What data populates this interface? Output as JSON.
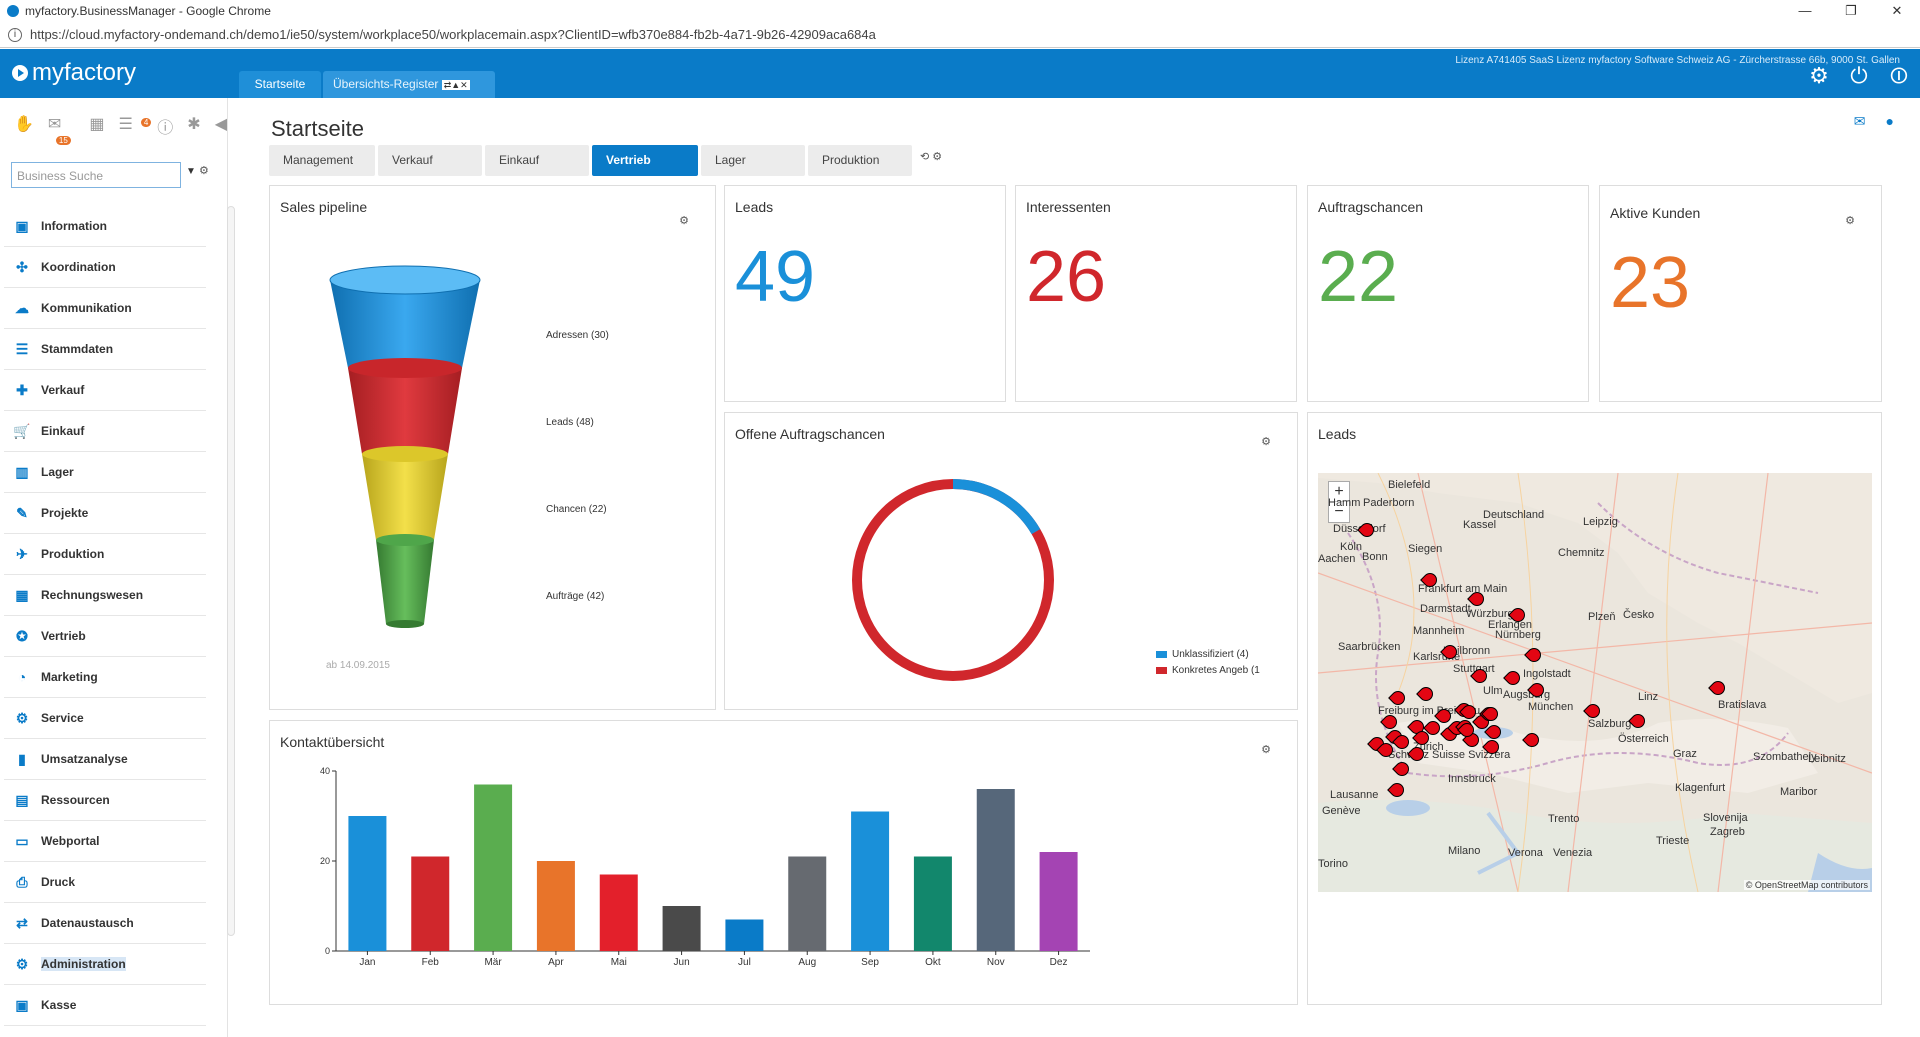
{
  "browser": {
    "title": "myfactory.BusinessManager - Google Chrome",
    "url": "https://cloud.myfactory-ondemand.ch/demo1/ie50/system/workplace50/workplacemain.aspx?ClientID=wfb370e884-fb2b-4a71-9b26-42909aca684a"
  },
  "header": {
    "logo": "myfactory",
    "license": "Lizenz A741405 SaaS Lizenz myfactory Software Schweiz AG - Zürcherstrasse 66b, 9000 St. Gallen",
    "tabs": [
      "Startseite",
      "Übersichts-Register"
    ]
  },
  "sidebar": {
    "badges": [
      "15",
      "4"
    ],
    "search_placeholder": "Business Suche",
    "items": [
      "Information",
      "Koordination",
      "Kommunikation",
      "Stammdaten",
      "Verkauf",
      "Einkauf",
      "Lager",
      "Projekte",
      "Produktion",
      "Rechnungswesen",
      "Vertrieb",
      "Marketing",
      "Service",
      "Umsatzanalyse",
      "Ressourcen",
      "Webportal",
      "Druck",
      "Datenaustausch",
      "Administration",
      "Kasse"
    ]
  },
  "main": {
    "title": "Startseite",
    "tabs": [
      "Management",
      "Verkauf",
      "Einkauf",
      "Vertrieb",
      "Lager",
      "Produktion"
    ],
    "active_tab": "Vertrieb"
  },
  "kpis": [
    {
      "label": "Leads",
      "value": "49",
      "color": "#1a90d9"
    },
    {
      "label": "Interessenten",
      "value": "26",
      "color": "#d0272c"
    },
    {
      "label": "Auftragschancen",
      "value": "22",
      "color": "#5aad4f"
    },
    {
      "label": "Aktive Kunden",
      "value": "23",
      "color": "#e8742a"
    }
  ],
  "pipeline": {
    "title": "Sales pipeline",
    "date": "ab 14.09.2015",
    "stages": [
      {
        "label": "Adressen (30)",
        "color": "#1a90d9"
      },
      {
        "label": "Leads (48)",
        "color": "#d0272c"
      },
      {
        "label": "Chancen (22)",
        "color": "#e8d12c"
      },
      {
        "label": "Aufträge (42)",
        "color": "#4fa64a"
      }
    ]
  },
  "offene": {
    "title": "Offene Auftragschancen",
    "legend": [
      "Unklassifiziert (4)",
      "Konkretes Angeb (1"
    ]
  },
  "leads_map": {
    "title": "Leads",
    "zoom_in": "+",
    "zoom_out": "−",
    "attribution": "© OpenStreetMap contributors",
    "labels": [
      "Bielefeld",
      "Paderborn",
      "Hamm",
      "Deutschland",
      "Kassel",
      "Leipzig",
      "Düsseldorf",
      "Köln",
      "Bonn",
      "Siegen",
      "Aachen",
      "Chemnitz",
      "Frankfurt am Main",
      "Darmstadt",
      "Würzburg",
      "Mannheim",
      "Erlangen",
      "Nürnberg",
      "Plzeň",
      "Česko",
      "Saarbrücken",
      "Heilbronn",
      "Karlsruhe",
      "Stuttgart",
      "Ingolstadt",
      "Ulm",
      "Augsburg",
      "München",
      "Freiburg im Breisgau",
      "Salzburg",
      "Linz",
      "Österreich",
      "Bratislava",
      "Zürich",
      "Schweiz Suisse Svizzera",
      "Graz",
      "Lausanne",
      "Genève",
      "Trento",
      "Slovenija",
      "Zagreb",
      "Milano",
      "Verona",
      "Venezia",
      "Torino",
      "Trieste",
      "Szombathely",
      "Maribor",
      "Klagenfurt",
      "Innsbruck",
      "Leibnitz"
    ]
  },
  "kontakt": {
    "title": "Kontaktübersicht"
  },
  "chart_data": {
    "type": "bar",
    "categories": [
      "Jan",
      "Feb",
      "Mär",
      "Apr",
      "Mai",
      "Jun",
      "Jul",
      "Aug",
      "Sep",
      "Okt",
      "Nov",
      "Dez"
    ],
    "values": [
      30,
      21,
      37,
      20,
      17,
      10,
      7,
      21,
      31,
      21,
      36,
      22
    ],
    "colors": [
      "#1a90d9",
      "#d0272c",
      "#5aad4f",
      "#e8742a",
      "#e3202b",
      "#4a4a4a",
      "#0a7bc8",
      "#666a70",
      "#1a90d9",
      "#12876c",
      "#56677a",
      "#a444b3"
    ],
    "yticks": [
      0,
      20,
      40
    ],
    "ylim": [
      0,
      40
    ],
    "grid": false,
    "title": "Kontaktübersicht"
  }
}
